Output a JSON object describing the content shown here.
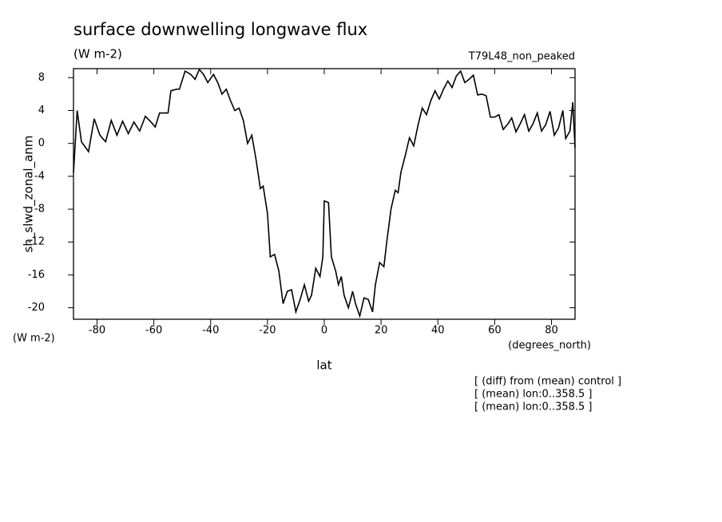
{
  "chart_data": {
    "type": "line",
    "title": "surface downwelling longwave flux",
    "units": "(W m-2)",
    "dataset": "T79L48_non_peaked",
    "y_label": "sh_slwd_zonal_anm",
    "y_units": "(W m-2)",
    "x_units": "(degrees_north)",
    "x_label": "lat",
    "notes": [
      "[ (diff) from (mean) control ]",
      "[ (mean) lon:0..358.5 ]",
      "[ (mean) lon:0..358.5 ]"
    ],
    "color": "#000000",
    "xlim": [
      -88.3,
      88.3
    ],
    "ylim": [
      -21.4,
      9.1
    ],
    "xticks": [
      -80,
      -60,
      -40,
      -20,
      0,
      20,
      40,
      60,
      80
    ],
    "yticks": [
      8,
      4,
      0,
      -4,
      -8,
      -12,
      -16,
      -20
    ],
    "x": [
      -88.3,
      -87,
      -85.5,
      -83,
      -81,
      -79,
      -77,
      -75,
      -73,
      -71,
      -69,
      -67,
      -65,
      -63,
      -61,
      -59.5,
      -58,
      -55,
      -54,
      -52,
      -51,
      -49,
      -47,
      -45.5,
      -44,
      -42.5,
      -41,
      -39,
      -37.5,
      -36,
      -34.5,
      -33,
      -31.5,
      -30,
      -28.5,
      -27,
      -25.5,
      -24,
      -22.5,
      -21.5,
      -20,
      -19,
      -17.5,
      -16,
      -14.5,
      -13,
      -11.5,
      -10,
      -8.5,
      -7,
      -5.5,
      -4.5,
      -3,
      -1.5,
      -0.5,
      0,
      1.5,
      2.5,
      4,
      5,
      6,
      7,
      8.5,
      10,
      11,
      12.5,
      14,
      15.5,
      17,
      18,
      19.5,
      21,
      22,
      23.5,
      25,
      26,
      27,
      28.5,
      30,
      31.5,
      33,
      34.5,
      36,
      37.5,
      39,
      40.5,
      42,
      43.5,
      45,
      46.5,
      48,
      49.5,
      51,
      52.5,
      54,
      55.5,
      57,
      58.5,
      60,
      61.5,
      63,
      64.5,
      66,
      67.5,
      69,
      70.5,
      72,
      73.5,
      75,
      76.5,
      78,
      79.5,
      81,
      82.5,
      84,
      85,
      86.5,
      87.5,
      88.3
    ],
    "values": [
      -3.6,
      4,
      0.2,
      -1,
      3,
      1,
      0.2,
      2.8,
      1,
      2.7,
      1.2,
      2.6,
      1.5,
      3.3,
      2.6,
      2,
      3.7,
      3.7,
      6.4,
      6.6,
      6.6,
      8.8,
      8.4,
      7.8,
      9,
      8.4,
      7.4,
      8.4,
      7.4,
      6,
      6.6,
      5.2,
      4,
      4.3,
      2.8,
      0,
      1,
      -2,
      -5.5,
      -5.2,
      -8.5,
      -13.8,
      -13.5,
      -15.5,
      -19.5,
      -18,
      -17.8,
      -20.5,
      -19,
      -17.2,
      -19.2,
      -18.5,
      -15.2,
      -16.2,
      -13.8,
      -7,
      -7.2,
      -13.8,
      -15.5,
      -17.2,
      -16.2,
      -18.5,
      -20,
      -18,
      -19.5,
      -21,
      -18.8,
      -19,
      -20.5,
      -17.2,
      -14.5,
      -15,
      -12,
      -8,
      -5.7,
      -6,
      -3.5,
      -1.5,
      0.7,
      -0.3,
      2.2,
      4.3,
      3.5,
      5.2,
      6.4,
      5.4,
      6.6,
      7.6,
      6.8,
      8.2,
      8.8,
      7.4,
      7.8,
      8.3,
      5.9,
      6,
      5.8,
      3.2,
      3.2,
      3.5,
      1.7,
      2.3,
      3.1,
      1.4,
      2.4,
      3.5,
      1.5,
      2.4,
      3.7,
      1.5,
      2.3,
      3.9,
      1,
      1.9,
      4,
      0.6,
      1.5,
      5,
      -0.5
    ]
  }
}
